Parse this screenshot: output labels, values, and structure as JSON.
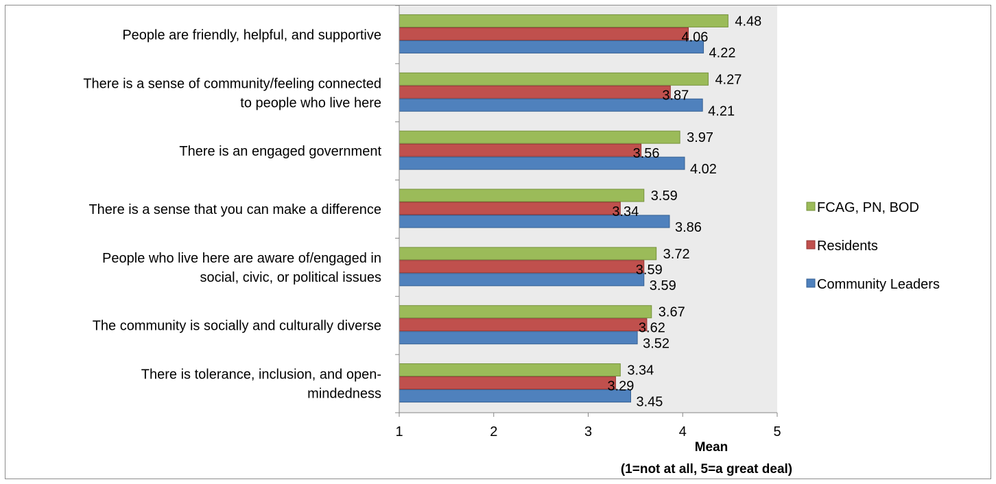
{
  "chart_data": {
    "type": "bar",
    "orientation": "horizontal",
    "categories": [
      "People are friendly, helpful, and supportive",
      "There is a sense of community/feeling connected to people who live here",
      "There is an engaged government",
      "There is a sense that you can make a difference",
      "People who live here are aware of/engaged in social, civic, or political issues",
      "The community is socially and culturally diverse",
      "There is tolerance, inclusion, and open-mindedness"
    ],
    "category_lines": [
      [
        "People are friendly, helpful, and supportive"
      ],
      [
        "There is a sense of community/feeling connected",
        "to people who live here"
      ],
      [
        "There is an engaged government"
      ],
      [
        "There is a sense that you can make a difference"
      ],
      [
        "People who live here are aware of/engaged in",
        "social, civic, or political issues"
      ],
      [
        "The community is socially and culturally diverse"
      ],
      [
        "There is tolerance, inclusion, and open-",
        "mindedness"
      ]
    ],
    "series": [
      {
        "name": "FCAG, PN, BOD",
        "color": "#9bbb59",
        "stroke": "#76923c",
        "values": [
          4.48,
          4.27,
          3.97,
          3.59,
          3.72,
          3.67,
          3.34
        ]
      },
      {
        "name": "Residents",
        "color": "#c0504d",
        "stroke": "#943634",
        "values": [
          4.06,
          3.87,
          3.56,
          3.34,
          3.59,
          3.62,
          3.29
        ]
      },
      {
        "name": "Community Leaders",
        "color": "#4f81bd",
        "stroke": "#366092",
        "values": [
          4.22,
          4.21,
          4.02,
          3.86,
          3.59,
          3.52,
          3.45
        ]
      }
    ],
    "value_labels": {
      "FCAG, PN, BOD": [
        "4.48",
        "4.27",
        "3.97",
        "3.59",
        "3.72",
        "3.67",
        "3.34"
      ],
      "Residents": [
        "4.06",
        "3.87",
        "3.56",
        "3.34",
        "3.59",
        "3.62",
        "3.29"
      ],
      "Community Leaders": [
        "4.22",
        "4.21",
        "4.02",
        "3.86",
        "3.59",
        "3.52",
        "3.45"
      ]
    },
    "xlim": [
      1,
      5
    ],
    "xticks": [
      "1",
      "2",
      "3",
      "4",
      "5"
    ],
    "xlabel_lines": [
      "Mean",
      "(1=not at all, 5=a great deal)"
    ],
    "ylabel": "",
    "title": "",
    "grid": false,
    "plot_background": "#ebebeb",
    "legend_position": "right",
    "legend_order": [
      "FCAG, PN, BOD",
      "Residents",
      "Community Leaders"
    ]
  }
}
